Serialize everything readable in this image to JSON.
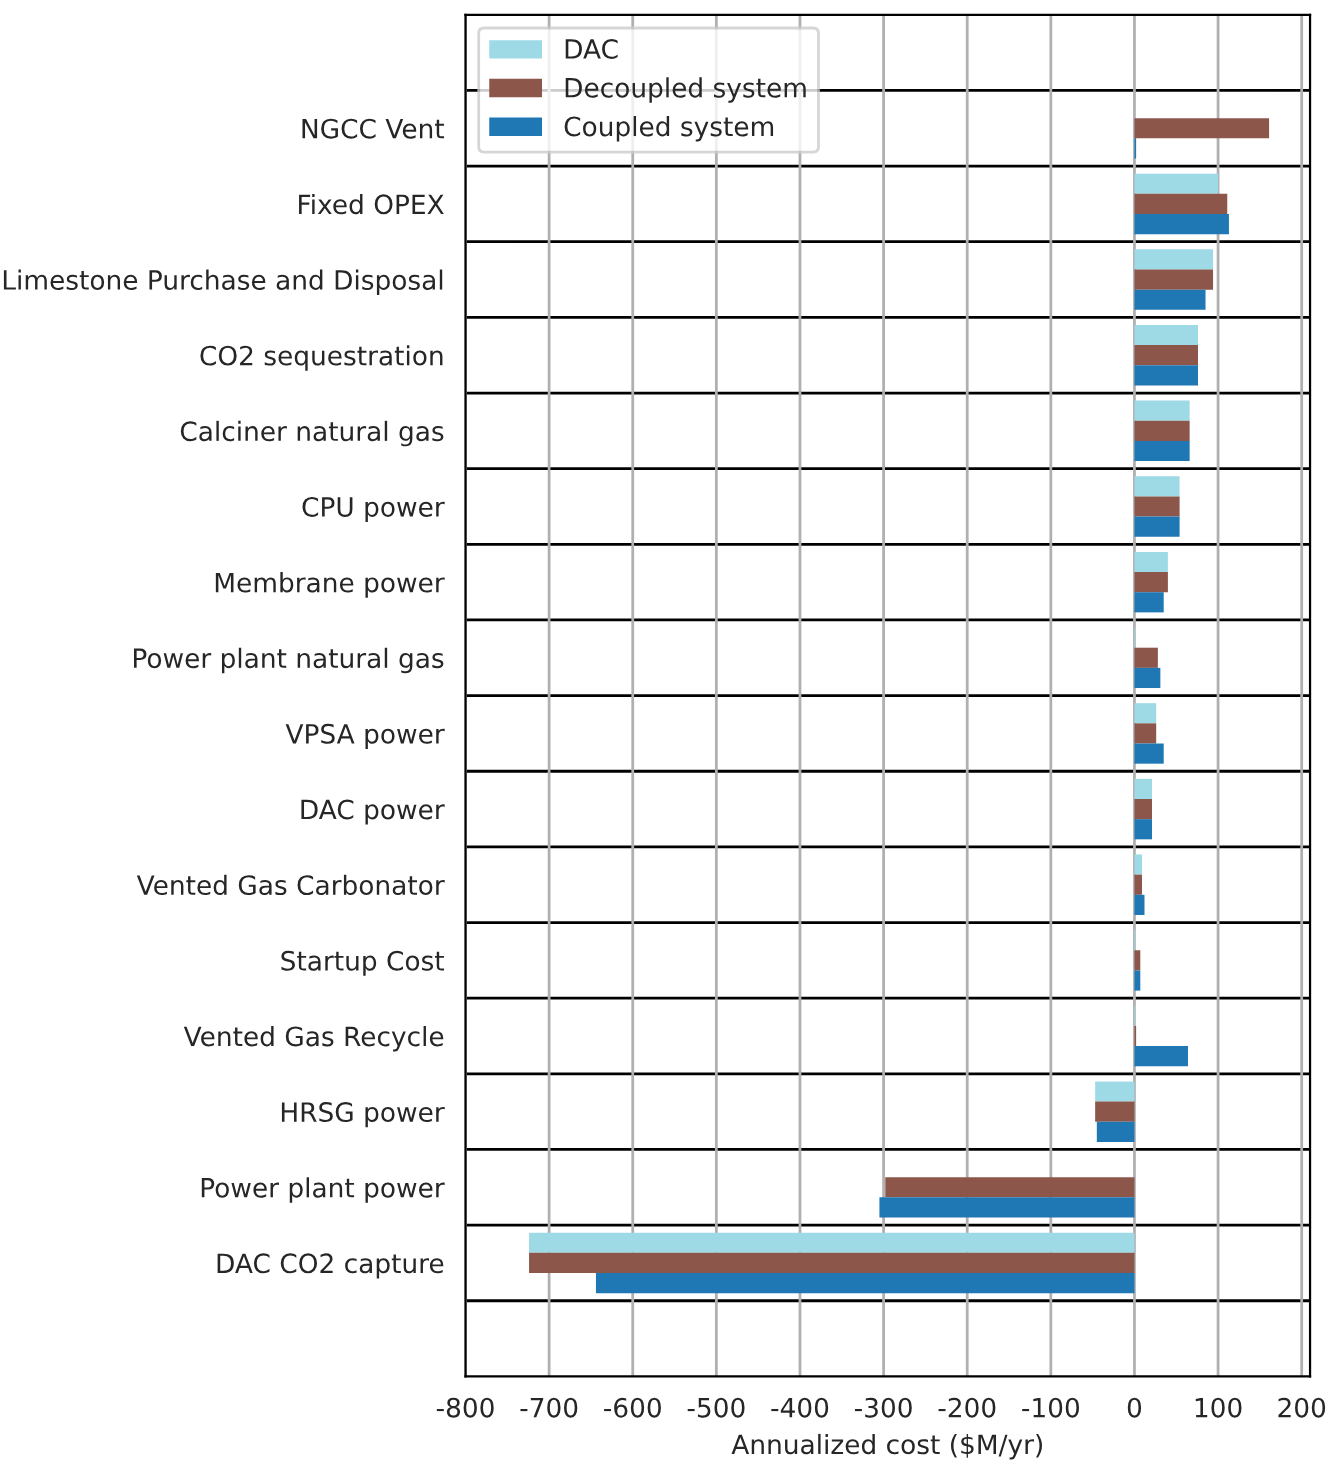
{
  "chart_data": {
    "type": "bar",
    "orientation": "horizontal",
    "xlabel": "Annualized cost ($M/yr)",
    "categories": [
      "NGCC Vent",
      "Fixed OPEX",
      "Limestone Purchase and Disposal",
      "CO2 sequestration",
      "Calciner natural gas",
      "CPU power",
      "Membrane power",
      "Power plant natural gas",
      "VPSA power",
      "DAC power",
      "Vented Gas Carbonator",
      "Startup Cost",
      "Vented Gas Recycle",
      "HRSG power",
      "Power plant power",
      "DAC CO2 capture"
    ],
    "series": [
      {
        "name": "DAC",
        "color": "#9edae5",
        "values": [
          0,
          100,
          94,
          76,
          66,
          54,
          40,
          1,
          26,
          21,
          9,
          1,
          1,
          -47,
          0,
          -724
        ]
      },
      {
        "name": "Decoupled system",
        "color": "#8c564b",
        "values": [
          161,
          111,
          94,
          76,
          66,
          54,
          40,
          28,
          26,
          21,
          9,
          7,
          2,
          -47,
          -298,
          -724
        ]
      },
      {
        "name": "Coupled system",
        "color": "#1f77b4",
        "values": [
          2,
          113,
          85,
          76,
          66,
          54,
          35,
          31,
          35,
          21,
          12,
          7,
          64,
          -45,
          -305,
          -644
        ]
      }
    ],
    "xlim": [
      -800,
      210
    ],
    "xticks": [
      -800,
      -700,
      -600,
      -500,
      -400,
      -300,
      -200,
      -100,
      0,
      100,
      200
    ],
    "grid": "x",
    "legend": "top left"
  }
}
